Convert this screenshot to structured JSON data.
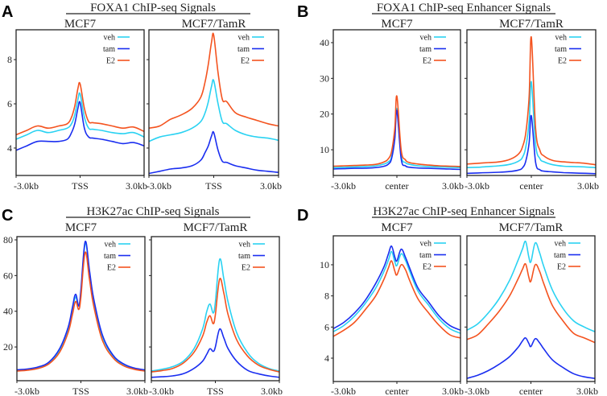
{
  "colors": {
    "veh": "#2ad2f2",
    "tam": "#1a2ef0",
    "E2": "#f4531f"
  },
  "legend": [
    "veh",
    "tam",
    "E2"
  ],
  "chart_data": [
    {
      "type": "line",
      "panel_letter": "A",
      "title": "FOXA1 ChIP-seq Signals",
      "x_ticks": [
        "-3.0kb",
        "TSS",
        "3.0kb"
      ],
      "y_ticks": [
        4,
        6,
        8
      ],
      "ylim": [
        2.76,
        9.35
      ],
      "xlim": [
        -3,
        3
      ],
      "x": [
        -3,
        -2.5,
        -2,
        -1.5,
        -1,
        -0.6,
        -0.4,
        -0.25,
        -0.1,
        0,
        0.2,
        0.4,
        0.6,
        1,
        1.5,
        2,
        2.5,
        3
      ],
      "subplots": [
        {
          "title": "MCF7",
          "series": [
            {
              "name": "veh",
              "values": [
                4.4,
                4.6,
                4.8,
                4.7,
                4.8,
                4.9,
                5.1,
                5.5,
                6.2,
                6.45,
                5.4,
                4.9,
                4.85,
                4.8,
                4.7,
                4.65,
                4.7,
                4.5
              ]
            },
            {
              "name": "tam",
              "values": [
                3.9,
                4.1,
                4.3,
                4.3,
                4.3,
                4.4,
                4.7,
                5.1,
                5.8,
                6.05,
                4.9,
                4.5,
                4.45,
                4.4,
                4.3,
                4.2,
                4.25,
                4.1
              ]
            },
            {
              "name": "E2",
              "values": [
                4.6,
                4.8,
                5.0,
                4.9,
                5.0,
                5.1,
                5.4,
                5.9,
                6.7,
                6.9,
                5.8,
                5.2,
                5.15,
                5.1,
                5.0,
                4.9,
                4.95,
                4.75
              ]
            }
          ]
        },
        {
          "title": "MCF7/TamR",
          "series": [
            {
              "name": "veh",
              "values": [
                4.3,
                4.5,
                4.6,
                4.7,
                4.9,
                5.2,
                5.6,
                6.1,
                6.8,
                7.05,
                6.0,
                5.2,
                5.1,
                4.8,
                4.6,
                4.5,
                4.45,
                4.35
              ]
            },
            {
              "name": "tam",
              "values": [
                2.85,
                2.95,
                3.05,
                3.1,
                3.2,
                3.45,
                3.8,
                4.1,
                4.55,
                4.7,
                3.9,
                3.4,
                3.35,
                3.2,
                3.1,
                3.0,
                2.95,
                2.9
              ]
            },
            {
              "name": "E2",
              "values": [
                4.9,
                5.0,
                5.3,
                5.5,
                5.8,
                6.3,
                7.0,
                7.8,
                8.8,
                9.1,
                7.4,
                6.2,
                6.1,
                5.6,
                5.4,
                5.25,
                5.1,
                5.0
              ]
            }
          ]
        }
      ]
    },
    {
      "type": "line",
      "panel_letter": "B",
      "title": "FOXA1 ChIP-seq Enhancer Signals",
      "x_ticks": [
        "-3.0kb",
        "center",
        "3.0kb"
      ],
      "y_ticks": [
        10,
        20,
        30,
        40
      ],
      "ylim": [
        2.8,
        43.6
      ],
      "xlim": [
        -3,
        3
      ],
      "x": [
        -3,
        -2.5,
        -2,
        -1.5,
        -1,
        -0.6,
        -0.4,
        -0.25,
        -0.1,
        0,
        0.2,
        0.4,
        0.6,
        1,
        1.5,
        2,
        2.5,
        3
      ],
      "subplots": [
        {
          "title": "MCF7",
          "series": [
            {
              "name": "veh",
              "values": [
                5,
                5.1,
                5.2,
                5.3,
                5.5,
                6,
                6.6,
                8,
                14,
                21.5,
                8.5,
                6.4,
                5.9,
                5.5,
                5.3,
                5.2,
                5.1,
                5
              ]
            },
            {
              "name": "tam",
              "values": [
                4.6,
                4.7,
                4.8,
                4.85,
                5,
                5.4,
                6,
                7.5,
                13,
                21,
                7.5,
                5.5,
                5.1,
                4.9,
                4.8,
                4.7,
                4.6,
                4.5
              ]
            },
            {
              "name": "E2",
              "values": [
                5.4,
                5.5,
                5.6,
                5.7,
                5.9,
                6.6,
                7.5,
                9.5,
                16,
                25,
                10,
                7.2,
                6.4,
                6,
                5.7,
                5.5,
                5.4,
                5.3
              ]
            }
          ]
        },
        {
          "title": "MCF7/TamR",
          "series": [
            {
              "name": "veh",
              "values": [
                5,
                5.1,
                5.3,
                5.5,
                5.9,
                6.8,
                8,
                11,
                18,
                29,
                11.5,
                7.5,
                6.6,
                5.8,
                5.4,
                5.3,
                5.2,
                5
              ]
            },
            {
              "name": "tam",
              "values": [
                3.4,
                3.5,
                3.6,
                3.7,
                3.9,
                4.3,
                5,
                7,
                12,
                19.5,
                6.5,
                4.4,
                4,
                3.8,
                3.6,
                3.5,
                3.4,
                3.3
              ]
            },
            {
              "name": "E2",
              "values": [
                6,
                6.2,
                6.4,
                6.6,
                7.3,
                8.8,
                11,
                15,
                25,
                41.5,
                16,
                9.8,
                8.2,
                7,
                6.6,
                6.4,
                6.2,
                5.8
              ]
            }
          ]
        }
      ]
    },
    {
      "type": "line",
      "panel_letter": "C",
      "title": "H3K27ac ChIP-seq Signals",
      "x_ticks": [
        "-3.0kb",
        "TSS",
        "3.0kb"
      ],
      "y_ticks": [
        20,
        40,
        60,
        80
      ],
      "ylim": [
        1.1,
        81.8
      ],
      "xlim": [
        -3,
        3
      ],
      "x": [
        -3,
        -2.5,
        -2,
        -1.5,
        -1,
        -0.6,
        -0.4,
        -0.25,
        -0.1,
        0,
        0.2,
        0.4,
        0.6,
        1,
        1.5,
        2,
        2.5,
        3
      ],
      "subplots": [
        {
          "title": "MCF7",
          "series": [
            {
              "name": "veh",
              "values": [
                7,
                7.5,
                8.5,
                11,
                18,
                30,
                41,
                48,
                43,
                50,
                78,
                62,
                46,
                26,
                15,
                10,
                8,
                7
              ]
            },
            {
              "name": "tam",
              "values": [
                7.2,
                7.7,
                8.8,
                11.5,
                19,
                31,
                42,
                49.5,
                43,
                52,
                79,
                63,
                47,
                27,
                15.5,
                10.5,
                8.2,
                7.2
              ]
            },
            {
              "name": "E2",
              "values": [
                6.5,
                7,
                8,
                10.5,
                17,
                28,
                38,
                45.5,
                41,
                48,
                73,
                58,
                43,
                24,
                14,
                9.5,
                7.5,
                6.5
              ]
            }
          ]
        },
        {
          "title": "MCF7/TamR",
          "series": [
            {
              "name": "veh",
              "values": [
                6.5,
                7.5,
                9,
                12,
                19,
                30,
                40,
                44,
                39,
                45,
                69,
                58,
                45,
                28,
                17,
                11,
                8,
                6.5
              ]
            },
            {
              "name": "tam",
              "values": [
                3,
                3.3,
                3.8,
                5,
                8,
                12,
                16,
                19,
                17.5,
                20,
                30,
                25,
                19,
                12,
                7,
                5,
                3.8,
                3
              ]
            },
            {
              "name": "E2",
              "values": [
                6,
                6.8,
                8,
                11,
                17,
                26,
                34,
                37.5,
                33,
                38,
                58,
                50,
                38,
                24,
                15,
                10,
                7.5,
                6
              ]
            }
          ]
        }
      ]
    },
    {
      "type": "line",
      "panel_letter": "D",
      "title": "H3K27ac ChIP-seq Enhancer Signals",
      "x_ticks": [
        "-3.0kb",
        "center",
        "3.0kb"
      ],
      "y_ticks": [
        4,
        6,
        8,
        10
      ],
      "ylim": [
        2.5,
        11.86
      ],
      "xlim": [
        -3,
        3
      ],
      "x": [
        -3,
        -2.5,
        -2,
        -1.5,
        -1,
        -0.6,
        -0.4,
        -0.25,
        -0.1,
        0,
        0.2,
        0.4,
        0.6,
        1,
        1.5,
        2,
        2.5,
        3
      ],
      "subplots": [
        {
          "title": "MCF7",
          "series": [
            {
              "name": "veh",
              "values": [
                5.7,
                6.1,
                6.7,
                7.5,
                8.5,
                9.6,
                10.3,
                10.85,
                10.2,
                9.95,
                10.7,
                10.3,
                9.6,
                8.3,
                7.4,
                6.5,
                5.9,
                5.6
              ]
            },
            {
              "name": "tam",
              "values": [
                5.9,
                6.3,
                6.9,
                7.7,
                8.8,
                9.9,
                10.7,
                11.2,
                10.5,
                10.25,
                11.0,
                10.5,
                9.8,
                8.5,
                7.6,
                6.7,
                6.1,
                5.8
              ]
            },
            {
              "name": "E2",
              "values": [
                5.4,
                5.8,
                6.3,
                7.1,
                8.0,
                9.1,
                9.8,
                10.25,
                9.6,
                9.35,
                10.0,
                9.7,
                9.0,
                7.8,
                6.9,
                6.1,
                5.5,
                5.3
              ]
            }
          ]
        },
        {
          "title": "MCF7/TamR",
          "series": [
            {
              "name": "veh",
              "values": [
                5.8,
                6.2,
                6.9,
                7.8,
                9.0,
                10.3,
                11.0,
                11.5,
                10.5,
                10.2,
                11.4,
                10.8,
                9.9,
                8.4,
                7.2,
                6.4,
                6.0,
                5.7
              ]
            },
            {
              "name": "tam",
              "values": [
                2.7,
                2.9,
                3.2,
                3.6,
                4.1,
                4.7,
                5.1,
                5.3,
                4.95,
                4.75,
                5.25,
                5.0,
                4.6,
                3.9,
                3.4,
                3.0,
                2.8,
                2.7
              ]
            },
            {
              "name": "E2",
              "values": [
                5.2,
                5.5,
                6.2,
                7.0,
                8.0,
                9.1,
                9.7,
                10.05,
                9.2,
                8.95,
                10.0,
                9.6,
                8.8,
                7.4,
                6.4,
                5.6,
                5.3,
                5.0
              ]
            }
          ]
        }
      ]
    }
  ]
}
